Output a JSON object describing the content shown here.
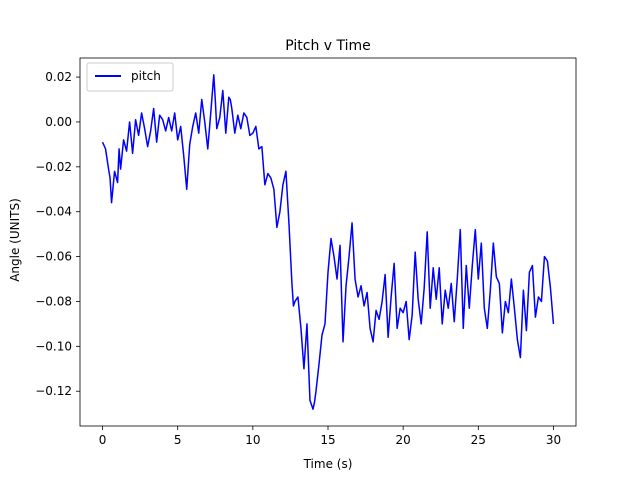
{
  "chart_data": {
    "type": "line",
    "title": "Pitch v Time",
    "xlabel": "Time (s)",
    "ylabel": "Angle (UNITS)",
    "xlim": [
      -1.5,
      31.5
    ],
    "ylim": [
      -0.1355,
      0.0285
    ],
    "xticks": [
      0,
      5,
      10,
      15,
      20,
      25,
      30
    ],
    "xtick_labels": [
      "0",
      "5",
      "10",
      "15",
      "20",
      "25",
      "30"
    ],
    "yticks": [
      -0.12,
      -0.1,
      -0.08,
      -0.06,
      -0.04,
      -0.02,
      0.0,
      0.02
    ],
    "ytick_labels": [
      "−0.12",
      "−0.10",
      "−0.08",
      "−0.06",
      "−0.04",
      "−0.02",
      "0.00",
      "0.02"
    ],
    "legend_position": "upper-left",
    "grid": false,
    "series": [
      {
        "name": "pitch",
        "color": "#0000ff",
        "x": [
          0.0,
          0.2,
          0.4,
          0.5,
          0.6,
          0.8,
          1.0,
          1.1,
          1.2,
          1.4,
          1.6,
          1.8,
          2.0,
          2.2,
          2.4,
          2.6,
          2.8,
          3.0,
          3.2,
          3.4,
          3.6,
          3.8,
          4.0,
          4.2,
          4.4,
          4.6,
          4.8,
          5.0,
          5.2,
          5.4,
          5.6,
          5.7,
          5.8,
          6.0,
          6.2,
          6.4,
          6.6,
          6.8,
          7.0,
          7.2,
          7.4,
          7.5,
          7.6,
          7.8,
          8.0,
          8.2,
          8.4,
          8.5,
          8.6,
          8.8,
          9.0,
          9.2,
          9.4,
          9.6,
          9.8,
          10.0,
          10.2,
          10.4,
          10.6,
          10.8,
          11.0,
          11.2,
          11.4,
          11.6,
          11.8,
          12.0,
          12.2,
          12.4,
          12.6,
          12.7,
          12.8,
          13.0,
          13.2,
          13.4,
          13.6,
          13.8,
          14.0,
          14.1,
          14.2,
          14.4,
          14.6,
          14.8,
          15.0,
          15.2,
          15.4,
          15.6,
          15.8,
          16.0,
          16.2,
          16.4,
          16.6,
          16.8,
          17.0,
          17.2,
          17.4,
          17.6,
          17.8,
          18.0,
          18.2,
          18.4,
          18.6,
          18.8,
          19.0,
          19.2,
          19.4,
          19.6,
          19.8,
          20.0,
          20.2,
          20.4,
          20.6,
          20.8,
          21.0,
          21.2,
          21.4,
          21.6,
          21.8,
          22.0,
          22.2,
          22.4,
          22.6,
          22.8,
          23.0,
          23.2,
          23.4,
          23.6,
          23.8,
          24.0,
          24.2,
          24.4,
          24.6,
          24.8,
          25.0,
          25.2,
          25.4,
          25.6,
          25.8,
          26.0,
          26.2,
          26.4,
          26.6,
          26.8,
          27.0,
          27.2,
          27.4,
          27.6,
          27.8,
          28.0,
          28.2,
          28.4,
          28.6,
          28.8,
          29.0,
          29.2,
          29.4,
          29.6,
          29.8,
          30.0
        ],
        "y": [
          -0.009,
          -0.012,
          -0.021,
          -0.025,
          -0.036,
          -0.022,
          -0.027,
          -0.012,
          -0.021,
          -0.008,
          -0.013,
          0.0,
          -0.014,
          0.001,
          -0.006,
          0.004,
          -0.003,
          -0.011,
          -0.004,
          0.006,
          -0.009,
          0.003,
          0.001,
          -0.004,
          0.002,
          -0.004,
          0.004,
          -0.008,
          -0.002,
          -0.015,
          -0.03,
          -0.02,
          -0.01,
          -0.002,
          0.004,
          -0.005,
          0.01,
          0.0,
          -0.012,
          0.004,
          0.021,
          0.01,
          -0.003,
          0.002,
          0.014,
          -0.005,
          0.011,
          0.01,
          0.006,
          -0.005,
          0.003,
          -0.003,
          0.004,
          0.002,
          -0.006,
          -0.005,
          -0.002,
          -0.012,
          -0.011,
          -0.028,
          -0.023,
          -0.025,
          -0.03,
          -0.047,
          -0.04,
          -0.028,
          -0.022,
          -0.045,
          -0.072,
          -0.082,
          -0.08,
          -0.078,
          -0.092,
          -0.11,
          -0.09,
          -0.124,
          -0.128,
          -0.125,
          -0.12,
          -0.108,
          -0.095,
          -0.09,
          -0.067,
          -0.052,
          -0.06,
          -0.07,
          -0.055,
          -0.098,
          -0.073,
          -0.06,
          -0.045,
          -0.07,
          -0.078,
          -0.073,
          -0.082,
          -0.076,
          -0.092,
          -0.098,
          -0.084,
          -0.088,
          -0.08,
          -0.068,
          -0.096,
          -0.078,
          -0.063,
          -0.092,
          -0.083,
          -0.085,
          -0.08,
          -0.097,
          -0.086,
          -0.058,
          -0.079,
          -0.09,
          -0.074,
          -0.049,
          -0.083,
          -0.065,
          -0.079,
          -0.065,
          -0.09,
          -0.075,
          -0.083,
          -0.072,
          -0.089,
          -0.07,
          -0.048,
          -0.092,
          -0.064,
          -0.083,
          -0.064,
          -0.048,
          -0.07,
          -0.054,
          -0.083,
          -0.092,
          -0.075,
          -0.054,
          -0.069,
          -0.072,
          -0.094,
          -0.08,
          -0.085,
          -0.07,
          -0.083,
          -0.097,
          -0.105,
          -0.075,
          -0.093,
          -0.067,
          -0.064,
          -0.087,
          -0.078,
          -0.08,
          -0.06,
          -0.062,
          -0.074,
          -0.09
        ]
      }
    ]
  }
}
